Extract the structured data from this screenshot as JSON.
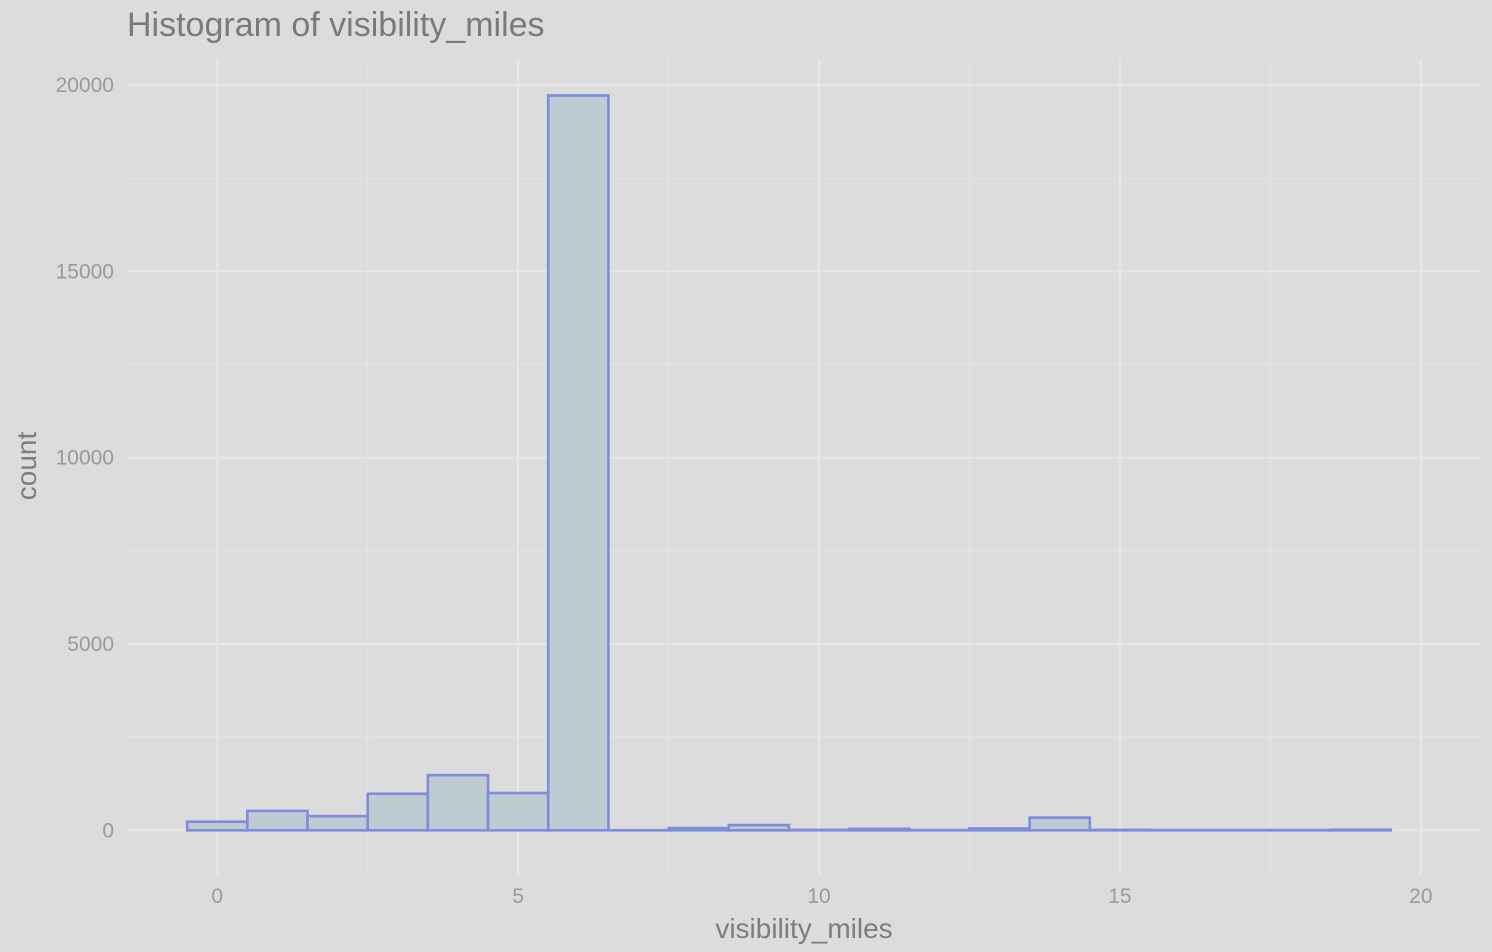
{
  "chart_data": {
    "type": "bar",
    "title": "Histogram of visibility_miles",
    "xlabel": "visibility_miles",
    "ylabel": "count",
    "xlim": [
      -1.5,
      21
    ],
    "ylim": [
      -1200,
      20700
    ],
    "x_ticks": [
      0,
      5,
      10,
      15,
      20
    ],
    "y_ticks": [
      0,
      5000,
      10000,
      15000,
      20000
    ],
    "x_minor": [
      2.5,
      7.5,
      12.5,
      17.5
    ],
    "y_minor": [
      2500,
      7500,
      12500,
      17500
    ],
    "grid": true,
    "bin_width": 1,
    "bins": [
      {
        "start": -0.5,
        "end": 0.5,
        "count": 230
      },
      {
        "start": 0.5,
        "end": 1.5,
        "count": 520
      },
      {
        "start": 1.5,
        "end": 2.5,
        "count": 380
      },
      {
        "start": 2.5,
        "end": 3.5,
        "count": 980
      },
      {
        "start": 3.5,
        "end": 4.5,
        "count": 1480
      },
      {
        "start": 4.5,
        "end": 5.5,
        "count": 1000
      },
      {
        "start": 5.5,
        "end": 6.5,
        "count": 19720
      },
      {
        "start": 6.5,
        "end": 7.5,
        "count": 0
      },
      {
        "start": 7.5,
        "end": 8.5,
        "count": 60
      },
      {
        "start": 8.5,
        "end": 9.5,
        "count": 140
      },
      {
        "start": 9.5,
        "end": 10.5,
        "count": 10
      },
      {
        "start": 10.5,
        "end": 11.5,
        "count": 40
      },
      {
        "start": 11.5,
        "end": 12.5,
        "count": 5
      },
      {
        "start": 12.5,
        "end": 13.5,
        "count": 50
      },
      {
        "start": 13.5,
        "end": 14.5,
        "count": 340
      },
      {
        "start": 14.5,
        "end": 15.5,
        "count": 10
      },
      {
        "start": 15.5,
        "end": 16.5,
        "count": 5
      },
      {
        "start": 16.5,
        "end": 17.5,
        "count": 5
      },
      {
        "start": 17.5,
        "end": 18.5,
        "count": 5
      },
      {
        "start": 18.5,
        "end": 19.5,
        "count": 15
      }
    ],
    "colors": {
      "bar_fill": "#bfcbd2",
      "bar_stroke": "#7f8bdc",
      "background": "#dcdcdc"
    }
  }
}
